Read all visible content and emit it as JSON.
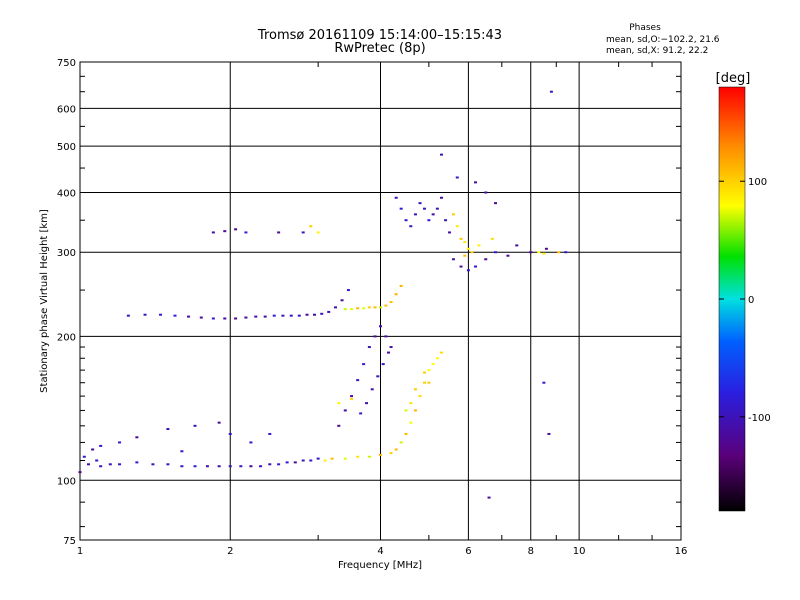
{
  "chart_data": {
    "type": "scatter",
    "title": "Tromsø 20161109 15:14:00–15:15:43",
    "subtitle": "RwPretec (8p)",
    "xlabel": "Frequency [MHz]",
    "ylabel": "Stationary phase Virtual Height [km]",
    "x_scale": "log",
    "y_scale": "log",
    "xlim": [
      1,
      16
    ],
    "ylim": [
      75,
      750
    ],
    "x_ticks": [
      1,
      2,
      4,
      6,
      8,
      10,
      16
    ],
    "x_tick_labels": [
      "1",
      "2",
      "4",
      "6",
      "8",
      "10",
      "16"
    ],
    "y_ticks": [
      75,
      100,
      200,
      300,
      400,
      500,
      600,
      750
    ],
    "y_tick_labels": [
      "75",
      "100",
      "200",
      "300",
      "400",
      "500",
      "600",
      "750"
    ],
    "grid": true,
    "legend": {
      "title": "Phases",
      "lines": [
        "mean, sd,O:−102.2, 21.6",
        "mean, sd,X:  91.2, 22.2"
      ]
    },
    "colorbar": {
      "label": "[deg]",
      "range": [
        -180,
        180
      ],
      "ticks": [
        100,
        0,
        -100
      ],
      "tick_labels": [
        "100",
        "0",
        "-100"
      ]
    },
    "series": [
      {
        "name": "O",
        "phase_mean": -102.2,
        "phase_sd": 21.6,
        "points": [
          [
            1.0,
            104
          ],
          [
            1.02,
            112
          ],
          [
            1.04,
            108
          ],
          [
            1.06,
            116
          ],
          [
            1.08,
            110
          ],
          [
            1.1,
            107
          ],
          [
            1.15,
            108
          ],
          [
            1.2,
            108
          ],
          [
            1.3,
            109
          ],
          [
            1.4,
            108
          ],
          [
            1.5,
            108
          ],
          [
            1.6,
            107
          ],
          [
            1.7,
            107
          ],
          [
            1.8,
            107
          ],
          [
            1.9,
            107
          ],
          [
            2.0,
            107
          ],
          [
            2.1,
            107
          ],
          [
            2.2,
            107
          ],
          [
            2.3,
            107
          ],
          [
            2.4,
            108
          ],
          [
            2.5,
            108
          ],
          [
            2.6,
            109
          ],
          [
            2.7,
            109
          ],
          [
            2.8,
            110
          ],
          [
            2.9,
            110
          ],
          [
            3.0,
            111
          ],
          [
            1.25,
            221
          ],
          [
            1.35,
            222
          ],
          [
            1.45,
            222
          ],
          [
            1.55,
            221
          ],
          [
            1.65,
            220
          ],
          [
            1.75,
            219
          ],
          [
            1.85,
            218
          ],
          [
            1.95,
            218
          ],
          [
            2.05,
            218
          ],
          [
            2.15,
            219
          ],
          [
            2.25,
            220
          ],
          [
            2.35,
            220
          ],
          [
            2.45,
            221
          ],
          [
            2.55,
            221
          ],
          [
            2.65,
            221
          ],
          [
            2.75,
            221
          ],
          [
            2.85,
            222
          ],
          [
            2.95,
            222
          ],
          [
            3.05,
            223
          ],
          [
            3.15,
            225
          ],
          [
            3.25,
            230
          ],
          [
            3.35,
            238
          ],
          [
            3.45,
            250
          ],
          [
            3.3,
            130
          ],
          [
            3.4,
            140
          ],
          [
            3.5,
            150
          ],
          [
            3.6,
            162
          ],
          [
            3.7,
            175
          ],
          [
            3.8,
            190
          ],
          [
            3.9,
            200
          ],
          [
            4.0,
            210
          ],
          [
            4.1,
            200
          ],
          [
            4.2,
            190
          ],
          [
            3.75,
            145
          ],
          [
            3.85,
            155
          ],
          [
            3.95,
            165
          ],
          [
            4.05,
            175
          ],
          [
            4.15,
            185
          ],
          [
            3.65,
            138
          ],
          [
            4.3,
            390
          ],
          [
            4.4,
            370
          ],
          [
            4.5,
            350
          ],
          [
            4.6,
            340
          ],
          [
            4.7,
            360
          ],
          [
            4.8,
            380
          ],
          [
            4.9,
            370
          ],
          [
            5.0,
            350
          ],
          [
            5.1,
            360
          ],
          [
            5.2,
            370
          ],
          [
            5.3,
            390
          ],
          [
            5.4,
            350
          ],
          [
            5.5,
            330
          ],
          [
            5.6,
            290
          ],
          [
            5.8,
            280
          ],
          [
            6.0,
            275
          ],
          [
            6.2,
            280
          ],
          [
            6.5,
            290
          ],
          [
            6.8,
            300
          ],
          [
            7.2,
            295
          ],
          [
            1.85,
            330
          ],
          [
            1.95,
            332
          ],
          [
            2.05,
            335
          ],
          [
            2.15,
            330
          ],
          [
            2.5,
            330
          ],
          [
            2.8,
            330
          ],
          [
            1.3,
            123
          ],
          [
            1.5,
            128
          ],
          [
            1.7,
            130
          ],
          [
            1.9,
            132
          ],
          [
            2.0,
            125
          ],
          [
            2.2,
            120
          ],
          [
            2.4,
            125
          ],
          [
            1.1,
            118
          ],
          [
            1.2,
            120
          ],
          [
            1.6,
            115
          ],
          [
            6.5,
            400
          ],
          [
            6.8,
            380
          ],
          [
            7.5,
            310
          ],
          [
            8.0,
            300
          ],
          [
            8.6,
            305
          ],
          [
            9.4,
            300
          ],
          [
            6.2,
            420
          ],
          [
            5.7,
            430
          ],
          [
            5.3,
            480
          ],
          [
            8.8,
            650
          ],
          [
            6.6,
            92
          ],
          [
            8.5,
            160
          ],
          [
            8.7,
            125
          ]
        ]
      },
      {
        "name": "X",
        "phase_mean": 91.2,
        "phase_sd": 22.2,
        "points": [
          [
            3.1,
            110
          ],
          [
            3.2,
            111
          ],
          [
            3.4,
            111
          ],
          [
            3.6,
            112
          ],
          [
            3.8,
            112
          ],
          [
            4.0,
            113
          ],
          [
            4.2,
            114
          ],
          [
            4.3,
            116
          ],
          [
            4.4,
            120
          ],
          [
            4.5,
            125
          ],
          [
            4.6,
            132
          ],
          [
            4.7,
            140
          ],
          [
            4.8,
            150
          ],
          [
            4.9,
            160
          ],
          [
            5.0,
            170
          ],
          [
            5.1,
            175
          ],
          [
            5.2,
            180
          ],
          [
            5.3,
            185
          ],
          [
            4.5,
            140
          ],
          [
            4.7,
            155
          ],
          [
            4.9,
            168
          ],
          [
            5.0,
            160
          ],
          [
            4.6,
            145
          ],
          [
            3.4,
            228
          ],
          [
            3.5,
            228
          ],
          [
            3.6,
            229
          ],
          [
            3.7,
            229
          ],
          [
            3.8,
            230
          ],
          [
            3.9,
            230
          ],
          [
            4.0,
            230
          ],
          [
            4.1,
            232
          ],
          [
            4.2,
            236
          ],
          [
            4.3,
            245
          ],
          [
            4.4,
            255
          ],
          [
            5.8,
            320
          ],
          [
            5.9,
            315
          ],
          [
            6.0,
            305
          ],
          [
            6.1,
            300
          ],
          [
            5.9,
            295
          ],
          [
            6.3,
            310
          ],
          [
            8.3,
            300
          ],
          [
            8.5,
            298
          ],
          [
            9.1,
            300
          ],
          [
            6.7,
            320
          ],
          [
            3.3,
            145
          ],
          [
            3.5,
            148
          ],
          [
            2.9,
            340
          ],
          [
            3.0,
            330
          ],
          [
            5.6,
            360
          ],
          [
            5.7,
            340
          ]
        ]
      }
    ]
  }
}
